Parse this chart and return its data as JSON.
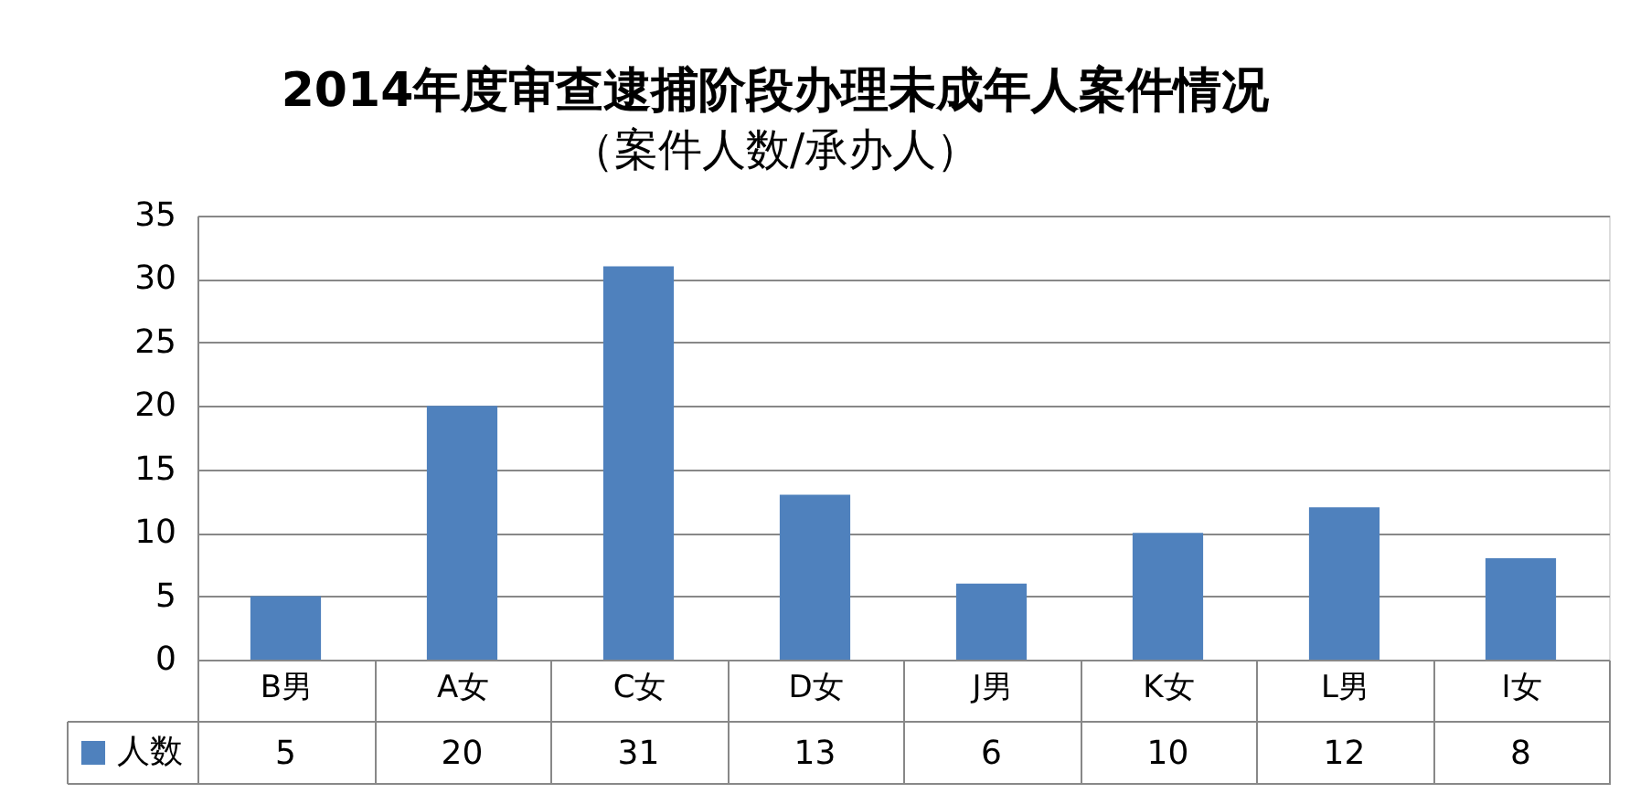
{
  "chart_data": {
    "type": "bar",
    "title": "2014年度审查逮捕阶段办理未成年人案件情况",
    "subtitle": "（案件人数/承办人）",
    "categories": [
      "B男",
      "A女",
      "C女",
      "D女",
      "J男",
      "K女",
      "L男",
      "I女"
    ],
    "series": [
      {
        "name": "人数",
        "color": "#4f81bd",
        "values": [
          5,
          20,
          31,
          13,
          6,
          10,
          12,
          8
        ]
      }
    ],
    "ylim": [
      0,
      35
    ],
    "yticks": [
      0,
      5,
      10,
      15,
      20,
      25,
      30,
      35
    ],
    "grid": "y",
    "data_labels": true,
    "legend": "bottom left"
  }
}
